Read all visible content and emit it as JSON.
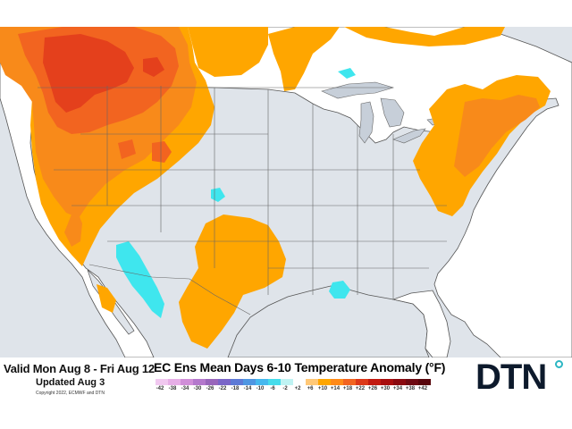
{
  "header": {
    "valid": "Valid Mon Aug 8 - Fri Aug 12",
    "updated": "Updated Aug 3",
    "copyright": "Copyright 2022, ECMWF and DTN"
  },
  "title": "EC Ens Mean Days 6-10 Temperature Anomaly (°F)",
  "logo": "DTN",
  "legend": {
    "ticks": [
      "-42",
      "-38",
      "-34",
      "-30",
      "-26",
      "-22",
      "-18",
      "-14",
      "-10",
      "-6",
      "-2",
      "+2",
      "+6",
      "+10",
      "+14",
      "+18",
      "+22",
      "+26",
      "+30",
      "+34",
      "+38",
      "+42"
    ],
    "colors": [
      "#f1c8f0",
      "#e6aee6",
      "#d08ed8",
      "#b478cc",
      "#9966bb",
      "#7a66c8",
      "#5e7ad6",
      "#4f96e2",
      "#46b8ee",
      "#46dceb",
      "#bff3f3",
      "#ffffff",
      "#ffc877",
      "#ffa600",
      "#ff8a18",
      "#f26420",
      "#dc3818",
      "#c21a10",
      "#a80e0e",
      "#8a0a10",
      "#6e0a12",
      "#58060c"
    ]
  },
  "colors": {
    "land": "#ffffff",
    "water": "#dfe4ea",
    "anomaly_cool": "#3fe6ee",
    "anomaly_warm_light": "#ffa600",
    "anomaly_warm": "#f88a1a",
    "anomaly_hot": "#f26420",
    "anomaly_hotter": "#e4401c"
  }
}
